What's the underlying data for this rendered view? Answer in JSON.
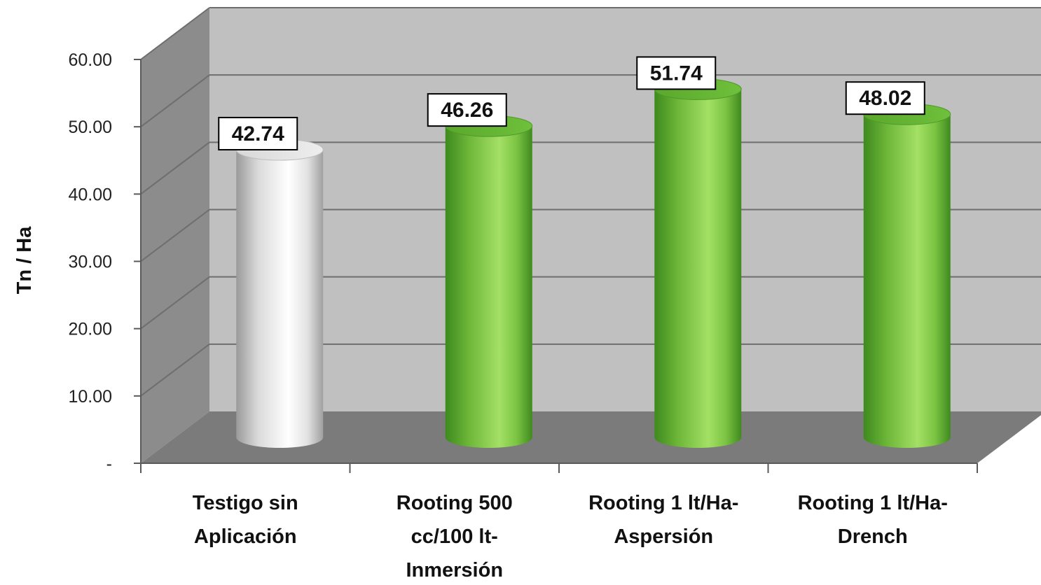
{
  "chart_data": {
    "type": "bar",
    "style": "3d-cylinder",
    "title": "",
    "xlabel": "",
    "ylabel": "Tn / Ha",
    "ylim": [
      0,
      60
    ],
    "yticks": [
      {
        "value": 0,
        "label": "-"
      },
      {
        "value": 10,
        "label": "10.00"
      },
      {
        "value": 20,
        "label": "20.00"
      },
      {
        "value": 30,
        "label": "30.00"
      },
      {
        "value": 40,
        "label": "40.00"
      },
      {
        "value": 50,
        "label": "50.00"
      },
      {
        "value": 60,
        "label": "60.00"
      }
    ],
    "grid": true,
    "categories": [
      [
        "Testigo sin",
        "Aplicación"
      ],
      [
        "Rooting 500",
        "cc/100 lt-",
        "Inmersión"
      ],
      [
        "Rooting 1 lt/Ha-",
        "Aspersión"
      ],
      [
        "Rooting 1 lt/Ha-",
        "Drench"
      ]
    ],
    "values": [
      42.74,
      46.26,
      51.74,
      48.02
    ],
    "data_labels": [
      "42.74",
      "46.26",
      "51.74",
      "48.02"
    ],
    "bar_colors": [
      "#f2f2f2",
      "#79c33f",
      "#79c33f",
      "#79c33f"
    ],
    "colors": {
      "wall": "#c0c0c0",
      "side_wall": "#8c8c8c",
      "floor": "#7b7b7b",
      "grid": "#6e6e6e"
    }
  }
}
